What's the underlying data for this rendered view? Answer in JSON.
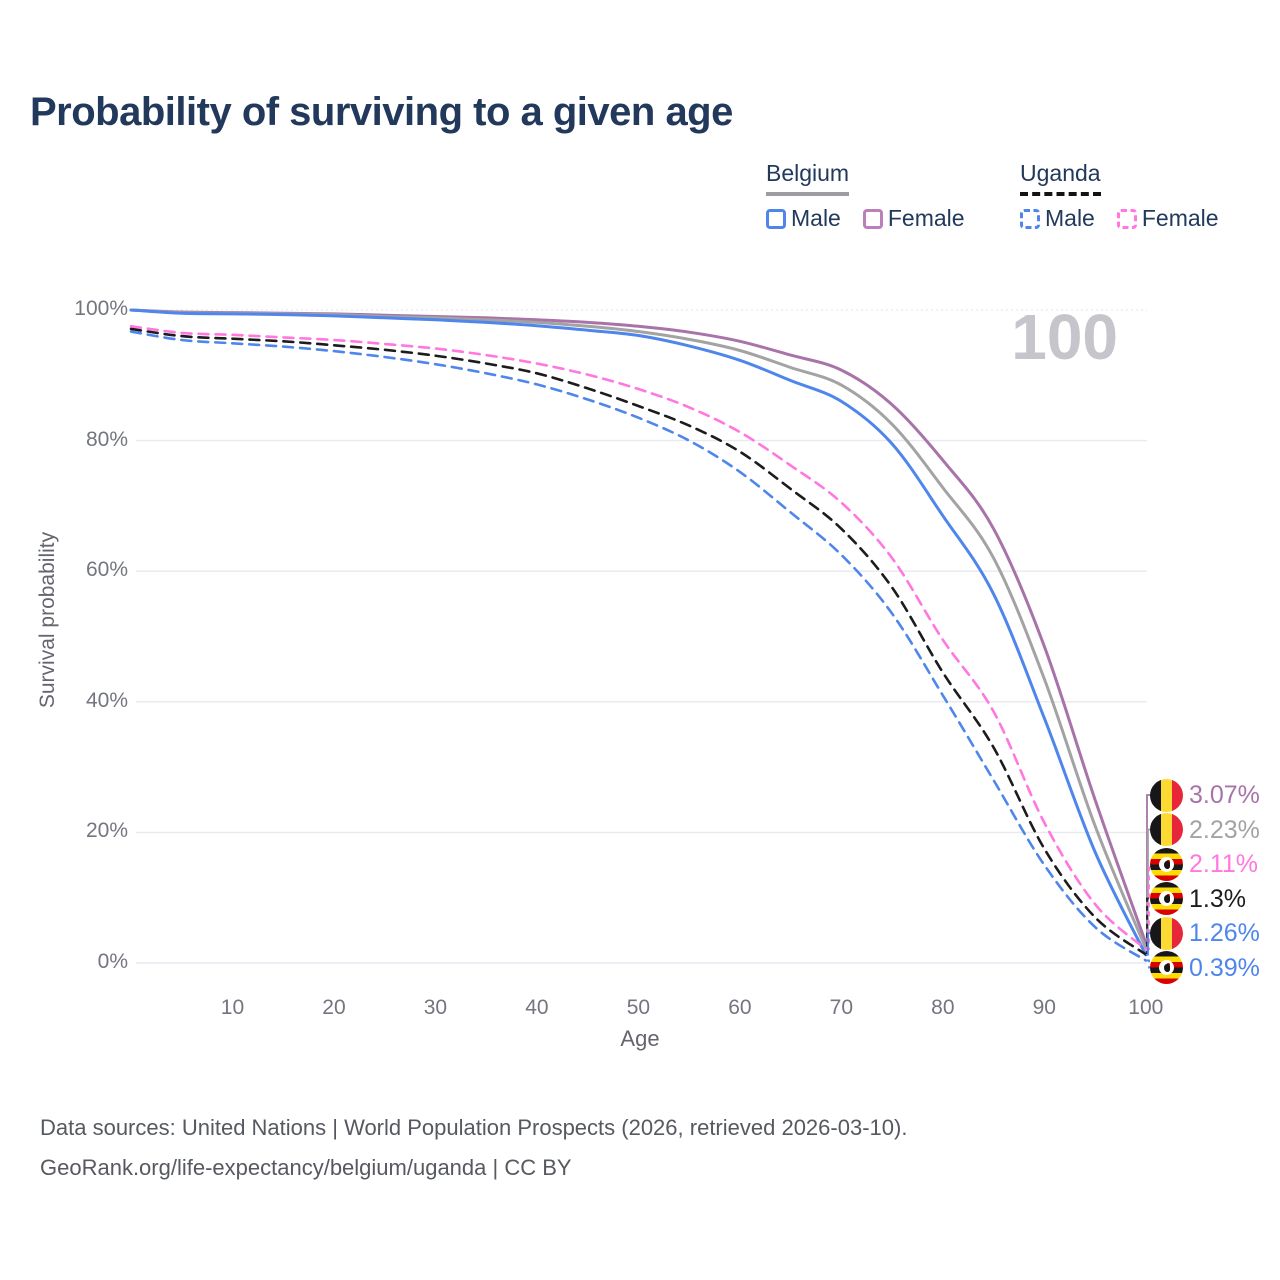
{
  "title": "Probability of surviving to a given age",
  "watermark_age": "100",
  "colors": {
    "male_blue": "#4e86ec",
    "female_purple": "#a873a8",
    "total_gray": "#a3a3a3",
    "uganda_female_pink": "#ff77df",
    "uganda_total_black": "#1c1c1c",
    "title_navy": "#22395c",
    "gridline": "#e8eaf0",
    "tick_text": "#73767e"
  },
  "legend": {
    "groups": [
      {
        "name": "Belgium",
        "underline": "solid",
        "items": [
          {
            "label": "Male",
            "color": "#4e86ec",
            "dashed": false
          },
          {
            "label": "Female",
            "color": "#bb7fbb",
            "dashed": false
          }
        ]
      },
      {
        "name": "Uganda",
        "underline": "dashed",
        "items": [
          {
            "label": "Male",
            "color": "#4e86ec",
            "dashed": true
          },
          {
            "label": "Female",
            "color": "#ff77df",
            "dashed": true
          }
        ]
      }
    ]
  },
  "chart_data": {
    "type": "line",
    "title": "Probability of surviving to a given age",
    "xlabel": "Age",
    "ylabel": "Survival probability",
    "xlim": [
      0,
      100
    ],
    "ylim": [
      0,
      100
    ],
    "x_ticks": [
      10,
      20,
      30,
      40,
      50,
      60,
      70,
      80,
      90,
      100
    ],
    "y_ticks": [
      "0%",
      "20%",
      "40%",
      "60%",
      "80%",
      "100%"
    ],
    "grid": "horizontal",
    "legend_position": "top-right",
    "x": [
      0,
      5,
      10,
      15,
      20,
      25,
      30,
      35,
      40,
      45,
      50,
      55,
      60,
      65,
      70,
      75,
      80,
      85,
      90,
      95,
      100
    ],
    "series": [
      {
        "name": "Belgium Female",
        "country": "Belgium",
        "sex": "Female",
        "color": "#a873a8",
        "dashed": false,
        "flag": "belgium",
        "end_label": "3.07%",
        "values": [
          100,
          99.7,
          99.6,
          99.5,
          99.4,
          99.2,
          99.0,
          98.8,
          98.5,
          98.1,
          97.5,
          96.6,
          95.2,
          93.1,
          90.8,
          85.5,
          77.0,
          66.5,
          48.5,
          25.0,
          3.07
        ]
      },
      {
        "name": "Belgium Both sexes",
        "country": "Belgium",
        "sex": "Both",
        "color": "#a3a3a3",
        "dashed": false,
        "flag": "belgium",
        "end_label": "2.23%",
        "values": [
          100,
          99.6,
          99.5,
          99.4,
          99.3,
          99.0,
          98.8,
          98.5,
          98.1,
          97.5,
          96.7,
          95.5,
          93.8,
          91.2,
          88.5,
          82.5,
          72.8,
          62.0,
          43.5,
          21.0,
          2.23
        ]
      },
      {
        "name": "Belgium Male",
        "country": "Belgium",
        "sex": "Male",
        "color": "#4e86ec",
        "dashed": false,
        "flag": "belgium",
        "end_label": "1.26%",
        "values": [
          100,
          99.5,
          99.4,
          99.3,
          99.1,
          98.8,
          98.5,
          98.1,
          97.6,
          96.9,
          96.1,
          94.5,
          92.3,
          89.2,
          86.0,
          79.5,
          68.5,
          56.5,
          37.5,
          17.0,
          1.26
        ]
      },
      {
        "name": "Uganda Female",
        "country": "Uganda",
        "sex": "Female",
        "color": "#ff77df",
        "dashed": true,
        "flag": "uganda",
        "end_label": "2.11%",
        "values": [
          97.5,
          96.5,
          96.2,
          95.8,
          95.4,
          94.8,
          94.1,
          93.1,
          91.8,
          90.1,
          87.9,
          85.1,
          81.3,
          76.2,
          70.5,
          62.0,
          49.5,
          38.5,
          21.5,
          9.0,
          2.11
        ]
      },
      {
        "name": "Uganda Both sexes",
        "country": "Uganda",
        "sex": "Both",
        "color": "#1c1c1c",
        "dashed": true,
        "flag": "uganda",
        "end_label": "1.3%",
        "values": [
          97.1,
          96.0,
          95.6,
          95.2,
          94.6,
          93.9,
          93.0,
          91.8,
          90.3,
          88.0,
          85.3,
          82.3,
          78.3,
          72.6,
          66.5,
          57.5,
          44.5,
          33.0,
          17.5,
          7.0,
          1.3
        ]
      },
      {
        "name": "Uganda Male",
        "country": "Uganda",
        "sex": "Male",
        "color": "#4e86ec",
        "dashed": true,
        "flag": "uganda",
        "end_label": "0.39%",
        "values": [
          96.7,
          95.4,
          94.9,
          94.4,
          93.7,
          92.8,
          91.7,
          90.3,
          88.6,
          86.3,
          83.5,
          80.0,
          75.2,
          69.0,
          62.5,
          53.5,
          41.0,
          28.0,
          15.0,
          5.5,
          0.39
        ]
      }
    ],
    "end_labels_top_to_bottom": [
      "3.07%",
      "2.23%",
      "2.11%",
      "1.3%",
      "1.26%",
      "0.39%"
    ]
  },
  "footer": {
    "line1": "Data sources: United Nations | World Population Prospects (2026, retrieved 2026-03-10).",
    "line2": "GeoRank.org/life-expectancy/belgium/uganda | CC BY"
  }
}
